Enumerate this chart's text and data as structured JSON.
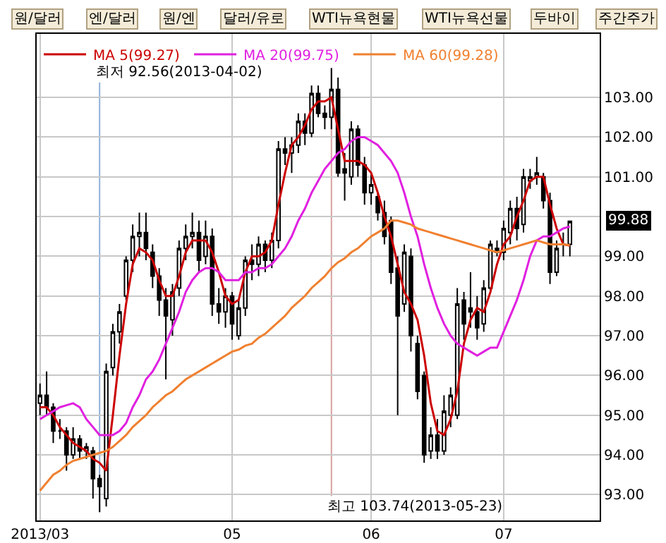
{
  "chart_data": {
    "type": "candlestick",
    "color": "#000000",
    "categories": [
      "2013/03",
      null,
      null,
      null,
      null,
      null,
      null,
      null,
      null,
      null,
      null,
      null,
      null,
      null,
      null,
      null,
      null,
      null,
      null,
      null,
      null,
      null,
      null,
      null,
      null,
      null,
      null,
      null,
      null,
      "05",
      null,
      null,
      null,
      null,
      null,
      null,
      null,
      null,
      null,
      null,
      null,
      null,
      null,
      null,
      null,
      null,
      null,
      null,
      null,
      null,
      "06",
      null,
      null,
      null,
      null,
      null,
      null,
      null,
      null,
      null,
      null,
      null,
      null,
      null,
      null,
      null,
      null,
      null,
      null,
      null,
      "07",
      null,
      null,
      null,
      null,
      null,
      null,
      null,
      null,
      null,
      null
    ],
    "ohlc": [
      [
        95.3,
        95.8,
        95.0,
        95.5
      ],
      [
        95.5,
        96.1,
        95.0,
        95.2
      ],
      [
        95.2,
        95.3,
        94.3,
        94.6
      ],
      [
        94.6,
        94.9,
        94.4,
        94.6
      ],
      [
        94.6,
        94.7,
        93.6,
        94.0
      ],
      [
        94.0,
        94.7,
        93.9,
        94.4
      ],
      [
        94.4,
        94.5,
        93.9,
        94.1
      ],
      [
        94.1,
        94.3,
        93.9,
        94.2
      ],
      [
        94.1,
        94.2,
        92.9,
        93.4
      ],
      [
        93.4,
        93.5,
        92.56,
        93.2
      ],
      [
        92.9,
        96.3,
        92.7,
        96.1
      ],
      [
        96.2,
        97.3,
        96.0,
        97.1
      ],
      [
        97.1,
        97.8,
        96.8,
        97.6
      ],
      [
        98.0,
        99.0,
        97.9,
        98.9
      ],
      [
        98.9,
        99.8,
        98.6,
        99.5
      ],
      [
        99.5,
        100.1,
        99.0,
        99.6
      ],
      [
        99.6,
        100.1,
        98.9,
        99.2
      ],
      [
        99.1,
        99.3,
        98.2,
        98.5
      ],
      [
        98.5,
        98.7,
        97.5,
        97.9
      ],
      [
        97.9,
        98.2,
        95.9,
        97.5
      ],
      [
        97.4,
        98.3,
        97.0,
        98.1
      ],
      [
        98.2,
        99.4,
        98.0,
        99.2
      ],
      [
        99.2,
        99.8,
        98.9,
        99.5
      ],
      [
        99.5,
        100.1,
        99.2,
        99.6
      ],
      [
        99.6,
        99.9,
        98.6,
        98.9
      ],
      [
        99.0,
        99.9,
        98.8,
        99.5
      ],
      [
        99.5,
        99.7,
        97.5,
        97.8
      ],
      [
        97.8,
        98.2,
        97.3,
        97.6
      ],
      [
        97.6,
        98.2,
        97.2,
        98.0
      ],
      [
        98.0,
        98.1,
        96.9,
        97.3
      ],
      [
        97.0,
        97.9,
        96.9,
        97.7
      ],
      [
        97.7,
        99.0,
        97.5,
        98.9
      ],
      [
        98.9,
        99.3,
        98.4,
        98.8
      ],
      [
        98.8,
        99.5,
        98.5,
        99.3
      ],
      [
        99.3,
        99.4,
        98.6,
        98.9
      ],
      [
        98.9,
        99.6,
        98.7,
        99.4
      ],
      [
        99.4,
        101.9,
        99.2,
        101.7
      ],
      [
        101.7,
        102.0,
        101.3,
        101.6
      ],
      [
        101.6,
        102.0,
        101.1,
        101.8
      ],
      [
        101.8,
        102.6,
        101.6,
        102.4
      ],
      [
        102.4,
        102.6,
        101.8,
        102.1
      ],
      [
        102.1,
        103.3,
        102.0,
        103.1
      ],
      [
        103.1,
        103.3,
        102.5,
        102.6
      ],
      [
        102.6,
        102.8,
        102.2,
        102.5
      ],
      [
        102.5,
        103.74,
        102.2,
        103.2
      ],
      [
        103.2,
        103.5,
        101.0,
        101.1
      ],
      [
        101.2,
        101.6,
        100.4,
        101.1
      ],
      [
        101.0,
        102.4,
        100.8,
        102.2
      ],
      [
        102.2,
        102.3,
        101.0,
        101.3
      ],
      [
        101.3,
        101.5,
        100.3,
        100.6
      ],
      [
        100.6,
        101.1,
        100.3,
        100.8
      ],
      [
        100.5,
        100.6,
        99.9,
        100.1
      ],
      [
        100.1,
        100.4,
        99.3,
        99.5
      ],
      [
        99.9,
        100.0,
        98.3,
        98.6
      ],
      [
        98.7,
        99.0,
        95.0,
        97.5
      ],
      [
        97.8,
        99.3,
        97.6,
        99.1
      ],
      [
        99.0,
        99.2,
        96.6,
        97.0
      ],
      [
        96.8,
        97.0,
        95.4,
        95.6
      ],
      [
        96.0,
        96.1,
        93.8,
        94.0
      ],
      [
        94.1,
        94.7,
        93.9,
        94.5
      ],
      [
        94.5,
        94.9,
        93.9,
        94.1
      ],
      [
        94.1,
        95.5,
        94.0,
        95.1
      ],
      [
        95.0,
        95.7,
        94.7,
        95.5
      ],
      [
        95.0,
        98.2,
        94.9,
        97.8
      ],
      [
        97.9,
        98.1,
        96.9,
        97.3
      ],
      [
        97.7,
        98.6,
        97.2,
        97.6
      ],
      [
        97.6,
        98.0,
        96.9,
        97.2
      ],
      [
        97.3,
        98.4,
        97.1,
        98.2
      ],
      [
        98.2,
        99.4,
        98.1,
        99.3
      ],
      [
        99.2,
        99.4,
        99.0,
        99.1
      ],
      [
        99.1,
        99.9,
        98.9,
        99.7
      ],
      [
        99.6,
        100.4,
        99.3,
        100.2
      ],
      [
        100.2,
        100.5,
        99.4,
        99.7
      ],
      [
        99.8,
        101.2,
        99.6,
        101.0
      ],
      [
        100.9,
        101.2,
        100.7,
        101.0
      ],
      [
        101.0,
        101.5,
        100.8,
        101.1
      ],
      [
        101.0,
        101.1,
        100.2,
        100.4
      ],
      [
        100.4,
        100.6,
        98.3,
        98.6
      ],
      [
        98.6,
        99.4,
        98.5,
        99.2
      ],
      [
        99.3,
        99.6,
        99.0,
        99.3
      ],
      [
        99.3,
        99.9,
        99.0,
        99.88
      ]
    ],
    "series": [
      {
        "type": "line",
        "name": "MA 5(99.27)",
        "color": "#cc0000",
        "values": [
          95.2,
          95.2,
          95.0,
          94.7,
          94.5,
          94.3,
          94.2,
          94.1,
          93.9,
          93.8,
          93.6,
          95.0,
          96.5,
          97.8,
          98.8,
          99.2,
          99.1,
          98.9,
          98.4,
          98.0,
          98.0,
          98.5,
          99.1,
          99.4,
          99.4,
          99.4,
          99.1,
          98.6,
          98.0,
          97.8,
          97.9,
          98.6,
          99.0,
          99.0,
          99.1,
          99.4,
          100.3,
          101.1,
          101.8,
          102.0,
          102.3,
          102.7,
          102.9,
          102.9,
          103.0,
          102.2,
          101.4,
          101.4,
          101.4,
          101.3,
          101.1,
          100.6,
          100.0,
          99.5,
          98.8,
          98.1,
          97.8,
          97.4,
          96.5,
          95.3,
          94.6,
          94.5,
          94.9,
          95.6,
          96.8,
          97.4,
          97.7,
          97.6,
          98.1,
          98.8,
          99.3,
          99.5,
          100.0,
          100.4,
          100.9,
          101.0,
          101.0,
          100.3,
          99.7,
          99.3,
          99.27
        ]
      },
      {
        "type": "line",
        "name": "MA 20(99.75)",
        "color": "#e020e0",
        "values": [
          94.9,
          95.0,
          95.1,
          95.2,
          95.25,
          95.3,
          95.2,
          94.9,
          94.7,
          94.5,
          94.5,
          94.5,
          94.6,
          94.8,
          95.2,
          95.5,
          95.9,
          96.1,
          96.4,
          96.8,
          97.2,
          97.6,
          98.1,
          98.4,
          98.6,
          98.7,
          98.7,
          98.6,
          98.4,
          98.4,
          98.4,
          98.6,
          98.6,
          98.7,
          98.7,
          98.8,
          99.0,
          99.2,
          99.5,
          99.9,
          100.2,
          100.6,
          100.9,
          101.2,
          101.4,
          101.6,
          101.7,
          101.9,
          102.0,
          102.0,
          101.9,
          101.8,
          101.6,
          101.4,
          101.1,
          100.6,
          100.0,
          99.5,
          98.8,
          98.2,
          97.7,
          97.3,
          97.0,
          96.8,
          96.7,
          96.6,
          96.5,
          96.6,
          96.7,
          96.7,
          97.1,
          97.5,
          97.9,
          98.4,
          99.0,
          99.4,
          99.5,
          99.5,
          99.6,
          99.7,
          99.75
        ]
      },
      {
        "type": "line",
        "name": "MA 60(99.28)",
        "color": "#f08030",
        "values": [
          93.1,
          93.3,
          93.5,
          93.6,
          93.75,
          93.85,
          93.9,
          93.95,
          94.0,
          94.05,
          94.1,
          94.2,
          94.35,
          94.5,
          94.7,
          94.85,
          95.0,
          95.2,
          95.35,
          95.5,
          95.6,
          95.75,
          95.9,
          96.0,
          96.1,
          96.2,
          96.3,
          96.4,
          96.5,
          96.6,
          96.65,
          96.75,
          96.8,
          96.95,
          97.05,
          97.2,
          97.35,
          97.5,
          97.7,
          97.85,
          98.0,
          98.2,
          98.35,
          98.5,
          98.7,
          98.85,
          98.95,
          99.1,
          99.2,
          99.35,
          99.5,
          99.6,
          99.7,
          99.9,
          99.9,
          99.85,
          99.8,
          99.7,
          99.65,
          99.6,
          99.55,
          99.5,
          99.45,
          99.4,
          99.35,
          99.3,
          99.25,
          99.2,
          99.15,
          99.1,
          99.15,
          99.2,
          99.25,
          99.3,
          99.35,
          99.4,
          99.35,
          99.3,
          99.3,
          99.3,
          99.28
        ]
      }
    ],
    "ylim": [
      92.35,
      104.6
    ],
    "yticks": [
      {
        "value": 93,
        "label": "93.00"
      },
      {
        "value": 94,
        "label": "94.00"
      },
      {
        "value": 95,
        "label": "95.00"
      },
      {
        "value": 96,
        "label": "96.00"
      },
      {
        "value": 97,
        "label": "97.00"
      },
      {
        "value": 98,
        "label": "98.00"
      },
      {
        "value": 99,
        "label": "99.00"
      },
      {
        "value": 100,
        "label": null
      },
      {
        "value": 101,
        "label": "101.00"
      },
      {
        "value": 102,
        "label": "102.00"
      },
      {
        "value": 103,
        "label": "103.00"
      }
    ],
    "grid": true,
    "legend": "top left",
    "annotations": [
      "원/달러",
      "엔/달러",
      "원/엔",
      "달러/유로",
      "WTI뉴욕현물",
      "WTI뉴욕선물",
      "두바이",
      "주간주가",
      "최저 92.56(2013-04-02)",
      "최고 103.74(2013-05-23)",
      "99.88"
    ]
  }
}
